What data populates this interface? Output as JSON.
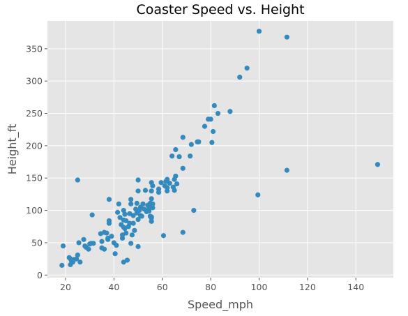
{
  "chart_data": {
    "type": "scatter",
    "title": "Coaster Speed vs. Height",
    "xlabel": "Speed_mph",
    "ylabel": "Height_ft",
    "xlim": [
      12.5,
      155.5
    ],
    "ylim": [
      -4,
      393
    ],
    "xticks": [
      20,
      40,
      60,
      80,
      100,
      120,
      140
    ],
    "yticks": [
      0,
      50,
      100,
      150,
      200,
      250,
      300,
      350
    ],
    "grid": true,
    "style": "ggplot",
    "colors": {
      "background": "#e5e5e5",
      "grid": "#ffffff",
      "marker": "#348abd"
    },
    "points": [
      [
        18.5,
        15
      ],
      [
        19.0,
        45
      ],
      [
        21.5,
        27
      ],
      [
        22.0,
        25
      ],
      [
        22.5,
        21
      ],
      [
        22.0,
        16
      ],
      [
        23.0,
        20
      ],
      [
        23.5,
        24
      ],
      [
        24.5,
        25
      ],
      [
        25.0,
        31
      ],
      [
        25.0,
        147
      ],
      [
        25.5,
        50
      ],
      [
        26.0,
        20
      ],
      [
        27.5,
        55
      ],
      [
        28.0,
        45
      ],
      [
        28.5,
        43
      ],
      [
        29.5,
        40
      ],
      [
        30.0,
        48
      ],
      [
        30.5,
        49
      ],
      [
        31.0,
        93
      ],
      [
        31.5,
        49
      ],
      [
        34.5,
        64
      ],
      [
        35.0,
        52
      ],
      [
        35.0,
        42
      ],
      [
        36.0,
        40
      ],
      [
        36.0,
        66
      ],
      [
        37.0,
        65
      ],
      [
        37.5,
        55
      ],
      [
        37.5,
        57
      ],
      [
        38.0,
        84
      ],
      [
        38.0,
        80
      ],
      [
        38.0,
        117
      ],
      [
        39.0,
        60
      ],
      [
        40.0,
        50
      ],
      [
        40.5,
        33
      ],
      [
        41.0,
        46
      ],
      [
        41.5,
        97
      ],
      [
        42.0,
        110
      ],
      [
        42.5,
        89
      ],
      [
        43.0,
        78
      ],
      [
        43.5,
        57
      ],
      [
        43.5,
        62
      ],
      [
        44.0,
        100
      ],
      [
        44.0,
        85
      ],
      [
        44.0,
        20
      ],
      [
        44.0,
        74
      ],
      [
        44.5,
        94
      ],
      [
        44.5,
        72
      ],
      [
        45.0,
        84
      ],
      [
        45.0,
        65
      ],
      [
        45.5,
        23
      ],
      [
        46.0,
        75
      ],
      [
        46.5,
        80
      ],
      [
        46.5,
        95
      ],
      [
        47.0,
        110
      ],
      [
        47.0,
        117
      ],
      [
        47.0,
        49
      ],
      [
        47.5,
        62
      ],
      [
        48.0,
        92
      ],
      [
        48.0,
        80
      ],
      [
        48.5,
        69
      ],
      [
        49.0,
        102
      ],
      [
        49.5,
        111
      ],
      [
        49.5,
        100
      ],
      [
        49.5,
        96
      ],
      [
        50.0,
        147
      ],
      [
        50.0,
        130
      ],
      [
        50.0,
        86
      ],
      [
        50.0,
        44
      ],
      [
        50.5,
        100
      ],
      [
        51.0,
        105
      ],
      [
        51.0,
        92
      ],
      [
        51.5,
        91
      ],
      [
        52.0,
        110
      ],
      [
        52.5,
        102
      ],
      [
        53.0,
        131
      ],
      [
        53.5,
        98
      ],
      [
        54.0,
        108
      ],
      [
        54.5,
        103
      ],
      [
        54.5,
        99
      ],
      [
        55.0,
        91
      ],
      [
        55.0,
        111
      ],
      [
        55.0,
        106
      ],
      [
        55.5,
        130
      ],
      [
        55.5,
        118
      ],
      [
        55.5,
        90
      ],
      [
        55.5,
        88
      ],
      [
        55.5,
        83
      ],
      [
        55.5,
        143
      ],
      [
        56.0,
        138
      ],
      [
        56.0,
        104
      ],
      [
        56.0,
        110
      ],
      [
        58.5,
        133
      ],
      [
        58.5,
        128
      ],
      [
        59.5,
        143
      ],
      [
        60.5,
        61
      ],
      [
        61.0,
        138
      ],
      [
        61.5,
        145
      ],
      [
        62.0,
        130
      ],
      [
        62.0,
        135
      ],
      [
        62.0,
        148
      ],
      [
        63.0,
        142
      ],
      [
        64.0,
        184
      ],
      [
        64.5,
        136
      ],
      [
        65.0,
        148
      ],
      [
        65.0,
        131
      ],
      [
        65.5,
        153
      ],
      [
        65.5,
        194
      ],
      [
        66.0,
        141
      ],
      [
        67.0,
        183
      ],
      [
        68.5,
        213
      ],
      [
        68.5,
        165
      ],
      [
        68.5,
        66
      ],
      [
        71.5,
        184
      ],
      [
        72.0,
        202
      ],
      [
        73.0,
        100
      ],
      [
        74.5,
        206
      ],
      [
        75.0,
        206
      ],
      [
        77.5,
        230
      ],
      [
        79.0,
        241
      ],
      [
        80.0,
        241
      ],
      [
        80.5,
        205
      ],
      [
        81.0,
        222
      ],
      [
        81.5,
        262
      ],
      [
        83.0,
        250
      ],
      [
        88.0,
        253
      ],
      [
        92.0,
        306
      ],
      [
        95.0,
        320
      ],
      [
        99.5,
        124
      ],
      [
        100.0,
        377
      ],
      [
        111.5,
        368
      ],
      [
        111.5,
        162
      ],
      [
        149.0,
        171
      ]
    ]
  }
}
